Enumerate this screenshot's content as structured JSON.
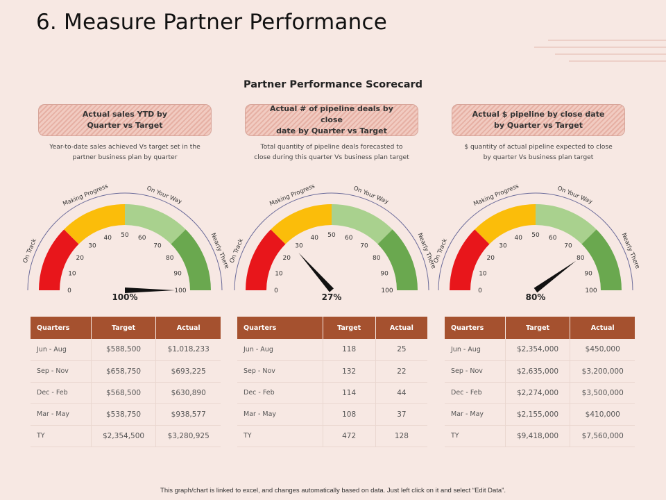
{
  "title": "6. Measure Partner Performance",
  "subtitle": "Partner Performance Scorecard",
  "footer": "This graph/chart is linked to excel, and changes automatically based on data. Just left click on it and select “Edit Data”.",
  "colors": {
    "red": "#e8161b",
    "yellow": "#fbbd0a",
    "lightgreen": "#a9d18e",
    "green": "#6aa84f",
    "header": "#a5512f"
  },
  "gauge_ticks": [
    "0",
    "10",
    "20",
    "30",
    "40",
    "50",
    "60",
    "70",
    "80",
    "90",
    "100"
  ],
  "gauge_labels": [
    "On Track",
    "Making Progress",
    "On Your Way",
    "Nearly There"
  ],
  "panels": [
    {
      "heading_line1": "Actual sales YTD by",
      "heading_line2": "Quarter vs Target",
      "desc_line1": "Year-to-date sales achieved Vs target set in the",
      "desc_line2": "partner business plan by quarter",
      "value": 100,
      "value_label": "100%",
      "headers": [
        "Quarters",
        "Target",
        "Actual"
      ],
      "rows": [
        [
          "Jun - Aug",
          "$588,500",
          "$1,018,233"
        ],
        [
          "Sep - Nov",
          "$658,750",
          "$693,225"
        ],
        [
          "Dec - Feb",
          "$568,500",
          "$630,890"
        ],
        [
          "Mar - May",
          "$538,750",
          "$938,577"
        ],
        [
          "TY",
          "$2,354,500",
          "$3,280,925"
        ]
      ]
    },
    {
      "heading_line1": "Actual # of pipeline deals by close",
      "heading_line2": "date by Quarter vs Target",
      "desc_line1": "Total quantity of pipeline deals forecasted to",
      "desc_line2": "close during this quarter Vs business plan target",
      "value": 27,
      "value_label": "27%",
      "headers": [
        "Quarters",
        "Target",
        "Actual"
      ],
      "rows": [
        [
          "Jun - Aug",
          "118",
          "25"
        ],
        [
          "Sep - Nov",
          "132",
          "22"
        ],
        [
          "Dec - Feb",
          "114",
          "44"
        ],
        [
          "Mar - May",
          "108",
          "37"
        ],
        [
          "TY",
          "472",
          "128"
        ]
      ]
    },
    {
      "heading_line1": "Actual $ pipeline by close date",
      "heading_line2": "by Quarter vs Target",
      "desc_line1": "$ quantity of actual pipeline expected to close",
      "desc_line2": "by quarter Vs business plan target",
      "value": 80,
      "value_label": "80%",
      "headers": [
        "Quarters",
        "Target",
        "Actual"
      ],
      "rows": [
        [
          "Jun - Aug",
          "$2,354,000",
          "$450,000"
        ],
        [
          "Sep - Nov",
          "$2,635,000",
          "$3,200,000"
        ],
        [
          "Dec - Feb",
          "$2,274,000",
          "$3,500,000"
        ],
        [
          "Mar - May",
          "$2,155,000",
          "$410,000"
        ],
        [
          "TY",
          "$9,418,000",
          "$7,560,000"
        ]
      ]
    }
  ]
}
